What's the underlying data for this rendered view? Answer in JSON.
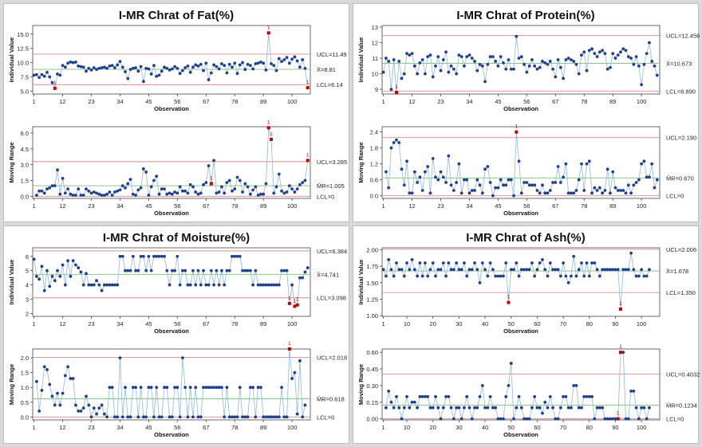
{
  "chart_data": [
    {
      "type": "line",
      "title": "I-MR Chrat of Fat(%)",
      "xlabel": "Observation",
      "x_ticks": [
        1,
        12,
        23,
        34,
        45,
        56,
        67,
        78,
        89,
        100
      ],
      "individual": {
        "ylabel": "Individual Value",
        "ylim": [
          4.5,
          16.5
        ],
        "y_ticks": [
          "5.0",
          "7.5",
          "10.0",
          "12.5",
          "15.0"
        ],
        "ucl": 11.49,
        "center": 8.81,
        "lcl": 6.14,
        "ucl_label": "UCL=11.49",
        "center_label": "X̄=8.81",
        "lcl_label": "LCL=6.14",
        "flag_label": "1",
        "values": [
          7.8,
          7.9,
          7.4,
          7.9,
          7.6,
          8.3,
          7.5,
          6.5,
          5.5,
          8.0,
          7.8,
          9.5,
          9.2,
          9.9,
          10.1,
          10.0,
          10.1,
          9.4,
          9.3,
          9.2,
          8.5,
          9.0,
          8.7,
          9.1,
          8.8,
          9.0,
          9.1,
          9.2,
          9.0,
          9.4,
          9.5,
          9.1,
          9.6,
          10.2,
          9.2,
          8.4,
          7.2,
          8.8,
          9.0,
          9.1,
          8.5,
          9.3,
          6.7,
          9.0,
          8.9,
          8.0,
          9.5,
          7.6,
          7.8,
          8.5,
          9.2,
          9.0,
          8.7,
          8.9,
          9.3,
          9.0,
          8.1,
          8.6,
          9.1,
          9.4,
          8.3,
          9.2,
          9.6,
          9.4,
          9.7,
          8.6,
          9.9,
          7.0,
          8.2,
          9.6,
          9.3,
          8.9,
          9.8,
          9.5,
          8.2,
          9.7,
          9.2,
          9.9,
          8.1,
          9.6,
          10.0,
          8.8,
          9.7,
          9.5,
          8.9,
          9.8,
          9.9,
          10.1,
          9.9,
          8.7,
          15.2,
          9.8,
          9.5,
          8.6,
          10.7,
          10.2,
          10.5,
          10.9,
          9.9,
          10.6,
          11.0,
          10.3,
          9.2,
          10.5,
          9.0,
          5.6
        ],
        "flagged": [
          9,
          91,
          106
        ]
      },
      "moving_range": {
        "ylabel": "Moving Range",
        "ylim": [
          -0.2,
          6.6
        ],
        "y_ticks": [
          "0.0",
          "1.5",
          "3.0",
          "4.5",
          "6.0"
        ],
        "ucl": 3.285,
        "center": 1.005,
        "lcl": 0,
        "ucl_label": "UCL=3.285",
        "center_label": "M̄R=1.005",
        "lcl_label": "LCL=0",
        "flag_label": "1",
        "values": [
          0.1,
          0.5,
          0.5,
          0.3,
          0.7,
          0.8,
          1.0,
          1.0,
          2.5,
          0.2,
          1.7,
          0.3,
          0.7,
          0.2,
          0.1,
          0.1,
          0.7,
          0.1,
          0.1,
          0.7,
          0.5,
          0.3,
          0.4,
          0.3,
          0.2,
          0.1,
          0.1,
          0.2,
          0.4,
          0.1,
          0.4,
          0.5,
          0.6,
          1.0,
          0.8,
          1.2,
          1.6,
          0.2,
          0.1,
          0.6,
          0.8,
          2.6,
          2.3,
          0.1,
          0.9,
          1.5,
          1.9,
          0.2,
          0.7,
          0.7,
          0.2,
          0.3,
          0.2,
          0.4,
          0.3,
          0.9,
          0.5,
          0.5,
          0.3,
          1.1,
          0.9,
          0.4,
          0.2,
          0.3,
          1.1,
          1.3,
          2.9,
          1.2,
          3.4,
          0.3,
          0.4,
          0.9,
          0.3,
          1.3,
          1.5,
          0.5,
          0.7,
          1.8,
          1.5,
          0.4,
          1.2,
          0.9,
          0.2,
          0.6,
          0.9,
          0.1,
          0.2,
          0.2,
          1.2,
          6.5,
          5.4,
          0.3,
          0.9,
          2.1,
          0.5,
          0.3,
          0.4,
          1.0,
          0.7,
          0.4,
          0.7,
          1.1,
          1.3,
          1.5,
          3.4
        ],
        "flagged": [
          69,
          91,
          92,
          106
        ]
      }
    },
    {
      "type": "line",
      "title": "I-MR Chrat of Protein(%)",
      "xlabel": "Observation",
      "x_ticks": [
        1,
        12,
        23,
        34,
        45,
        56,
        67,
        78,
        89,
        100
      ],
      "individual": {
        "ylabel": "Individual Value",
        "ylim": [
          8.7,
          13.1
        ],
        "y_ticks": [
          "9",
          "10",
          "11",
          "12",
          "13"
        ],
        "ucl": 12.456,
        "center": 10.673,
        "lcl": 8.89,
        "ucl_label": "UCL=12.456",
        "center_label": "X̄=10.673",
        "lcl_label": "LCL=8.890",
        "flag_label": "1",
        "values": [
          10.1,
          11.0,
          10.8,
          9.0,
          10.9,
          8.8,
          10.8,
          9.7,
          10.0,
          11.3,
          11.2,
          11.3,
          10.5,
          10.0,
          10.7,
          10.9,
          10.0,
          11.1,
          11.2,
          9.8,
          10.5,
          11.1,
          10.2,
          10.9,
          11.4,
          10.1,
          10.5,
          10.3,
          10.0,
          11.2,
          11.1,
          10.5,
          11.1,
          11.2,
          11.0,
          10.8,
          10.2,
          10.6,
          10.5,
          9.5,
          10.6,
          11.1,
          11.1,
          10.8,
          10.5,
          11.1,
          10.7,
          10.3,
          10.9,
          10.3,
          10.3,
          12.4,
          11.0,
          11.1,
          10.6,
          10.1,
          10.5,
          10.9,
          10.5,
          10.3,
          10.4,
          10.8,
          10.7,
          10.6,
          10.8,
          10.3,
          9.8,
          10.9,
          10.4,
          9.7,
          10.9,
          11.0,
          10.9,
          10.8,
          10.6,
          10.0,
          11.2,
          11.4,
          10.2,
          11.5,
          11.6,
          11.3,
          11.1,
          11.4,
          11.5,
          11.3,
          10.3,
          10.4,
          11.3,
          11.0,
          11.2,
          11.4,
          11.6,
          11.5,
          11.1,
          11.0,
          10.6,
          11.1,
          10.5,
          9.3,
          10.6,
          11.3,
          12.0,
          10.8,
          10.5,
          9.9
        ],
        "flagged": [
          6
        ]
      },
      "moving_range": {
        "ylabel": "Moving Range",
        "ylim": [
          -0.1,
          2.6
        ],
        "y_ticks": [
          "0.0",
          "0.6",
          "1.2",
          "1.8",
          "2.4"
        ],
        "ucl": 2.19,
        "center": 0.67,
        "lcl": 0,
        "ucl_label": "UCL=2.190",
        "center_label": "M̄R=0.670",
        "lcl_label": "LCL=0",
        "flag_label": "1",
        "values": [
          0.9,
          0.3,
          1.8,
          2.0,
          2.1,
          2.0,
          1.0,
          0.4,
          1.3,
          0.1,
          0.1,
          0.9,
          0.5,
          0.7,
          0.2,
          0.9,
          1.1,
          0.1,
          1.4,
          0.7,
          0.6,
          0.9,
          0.7,
          0.5,
          1.5,
          0.4,
          0.2,
          0.5,
          1.2,
          0.1,
          0.6,
          0.6,
          0.1,
          0.2,
          0.2,
          0.6,
          0.4,
          0.1,
          1.0,
          1.1,
          0.5,
          0.0,
          0.3,
          0.3,
          0.6,
          0.4,
          0.4,
          0.6,
          0.6,
          0.0,
          2.4,
          1.3,
          0.1,
          0.5,
          0.5,
          0.4,
          0.4,
          0.4,
          0.2,
          0.1,
          0.4,
          0.1,
          0.1,
          0.2,
          0.5,
          0.5,
          1.1,
          0.5,
          0.7,
          1.2,
          0.1,
          0.1,
          0.1,
          0.2,
          0.6,
          1.2,
          0.2,
          1.2,
          1.3,
          0.1,
          0.3,
          0.2,
          0.3,
          0.1,
          0.2,
          1.0,
          0.1,
          0.9,
          0.3,
          0.2,
          0.2,
          0.2,
          0.1,
          0.4,
          0.1,
          0.4,
          0.5,
          0.6,
          1.2,
          1.3,
          0.7,
          0.7,
          1.2,
          0.3,
          0.6
        ],
        "flagged": [
          52
        ]
      }
    },
    {
      "type": "line",
      "title": "I-MR Chrat of Moisture(%)",
      "xlabel": "Observation",
      "x_ticks": [
        1,
        12,
        23,
        34,
        45,
        56,
        67,
        78,
        89,
        100
      ],
      "individual": {
        "ylabel": "Individual Value",
        "ylim": [
          1.8,
          6.6
        ],
        "y_ticks": [
          "2",
          "3",
          "4",
          "5",
          "6"
        ],
        "ucl": 6.384,
        "center": 4.741,
        "lcl": 3.098,
        "ucl_label": "UCL=6.384",
        "center_label": "X̄=4.741",
        "lcl_label": "LCL=3.098",
        "flag_label": "1",
        "values": [
          5.8,
          4.6,
          4.4,
          5.3,
          3.6,
          5.0,
          3.9,
          4.6,
          4.3,
          5.0,
          4.6,
          5.4,
          4.0,
          5.7,
          4.6,
          5.7,
          5.4,
          5.2,
          4.9,
          4.0,
          4.8,
          4.0,
          4.0,
          4.0,
          4.3,
          4.0,
          3.6,
          4.0,
          4.0,
          4.0,
          4.0,
          4.0,
          4.0,
          6.0,
          6.0,
          5.0,
          5.0,
          5.0,
          6.0,
          5.0,
          5.0,
          6.0,
          6.0,
          5.0,
          6.0,
          5.0,
          6.0,
          6.0,
          6.0,
          6.0,
          6.0,
          5.0,
          4.0,
          5.0,
          5.0,
          6.0,
          4.0,
          5.0,
          5.0,
          4.0,
          4.0,
          5.0,
          4.0,
          5.0,
          4.0,
          5.0,
          4.0,
          4.0,
          5.0,
          4.0,
          5.0,
          4.0,
          5.0,
          4.0,
          5.0,
          5.0,
          6.0,
          6.0,
          6.0,
          6.0,
          5.0,
          5.0,
          5.0,
          5.0,
          4.0,
          5.0,
          4.0,
          4.0,
          4.0,
          4.0,
          4.0,
          4.0,
          4.0,
          4.0,
          4.0,
          5.0,
          5.0,
          5.0,
          2.7,
          4.0,
          2.5,
          2.6,
          4.5,
          4.5,
          4.9,
          5.2
        ],
        "flagged": [
          99,
          101,
          102
        ]
      },
      "moving_range": {
        "ylabel": "Moving Range",
        "ylim": [
          -0.1,
          2.3
        ],
        "y_ticks": [
          "0.0",
          "0.5",
          "1.0",
          "1.5",
          "2.0"
        ],
        "ucl": 2.018,
        "center": 0.618,
        "lcl": 0,
        "ucl_label": "UCL=2.018",
        "center_label": "M̄R=0.618",
        "lcl_label": "LCL=0",
        "flag_label": "1",
        "values": [
          1.2,
          0.2,
          0.9,
          1.7,
          1.6,
          1.1,
          0.7,
          0.4,
          0.8,
          0.4,
          0.8,
          1.4,
          1.7,
          1.3,
          1.3,
          0.4,
          0.2,
          0.2,
          0.3,
          0.7,
          0.4,
          0.0,
          0.3,
          0.1,
          0.3,
          0.4,
          0.1,
          0.0,
          1.0,
          1.0,
          0.0,
          0.0,
          2.0,
          0.0,
          1.0,
          0.0,
          0.0,
          1.0,
          1.0,
          0.0,
          1.0,
          0.0,
          0.0,
          1.0,
          1.0,
          0.0,
          1.0,
          0.0,
          0.0,
          1.0,
          1.0,
          0.0,
          0.0,
          1.0,
          1.0,
          0.0,
          2.0,
          1.0,
          0.0,
          1.0,
          0.0,
          1.0,
          0.0,
          0.0,
          1.0,
          1.0,
          1.0,
          1.0,
          1.0,
          1.0,
          1.0,
          1.0,
          0.0,
          1.0,
          0.0,
          0.0,
          0.0,
          0.0,
          1.0,
          0.0,
          0.0,
          0.0,
          1.0,
          1.0,
          0.0,
          1.0,
          1.0,
          0.0,
          0.0,
          0.0,
          0.0,
          0.0,
          0.0,
          0.0,
          1.0,
          0.0,
          0.0,
          2.3,
          1.3,
          1.5,
          0.1,
          1.9,
          0.0,
          0.4
        ],
        "flagged": [
          99
        ]
      }
    },
    {
      "type": "line",
      "title": "I-MR Chrat of Ash(%)",
      "xlabel": "Observation",
      "x_ticks": [
        1,
        10,
        20,
        30,
        40,
        50,
        60,
        70,
        80,
        90,
        100
      ],
      "individual": {
        "ylabel": "Individual Value",
        "ylim": [
          0.99,
          2.03
        ],
        "y_ticks": [
          "1.00",
          "1.25",
          "1.50",
          "1.75",
          "2.00"
        ],
        "ucl": 2.006,
        "center": 1.678,
        "lcl": 1.35,
        "ucl_label": "UCL=2.006",
        "center_label": "X̄=1.678",
        "lcl_label": "LCL=1.350",
        "flag_label": "1",
        "values": [
          1.7,
          1.6,
          1.85,
          1.7,
          1.6,
          1.8,
          1.7,
          1.7,
          1.6,
          1.8,
          1.7,
          1.85,
          1.7,
          1.6,
          1.8,
          1.6,
          1.8,
          1.6,
          1.7,
          1.8,
          1.6,
          1.7,
          1.7,
          1.8,
          1.6,
          1.8,
          1.7,
          1.7,
          1.8,
          1.7,
          1.7,
          1.8,
          1.6,
          1.7,
          1.7,
          1.8,
          1.7,
          1.5,
          1.8,
          1.7,
          1.6,
          1.8,
          1.7,
          1.6,
          1.6,
          1.6,
          1.6,
          1.8,
          1.2,
          1.7,
          1.7,
          1.8,
          1.6,
          1.7,
          1.7,
          1.7,
          1.7,
          1.8,
          1.6,
          1.7,
          1.8,
          1.85,
          1.7,
          1.6,
          1.8,
          1.7,
          1.7,
          1.7,
          1.6,
          1.8,
          1.6,
          1.5,
          1.6,
          1.9,
          1.6,
          1.7,
          1.8,
          1.6,
          1.8,
          1.6,
          1.8,
          1.8,
          1.7,
          1.6,
          1.7,
          1.7,
          1.7,
          1.7,
          1.7,
          1.7,
          1.7,
          1.1,
          1.7,
          1.7,
          1.7,
          1.95,
          1.7,
          1.6,
          1.6,
          1.7,
          1.6,
          1.6,
          1.7
        ],
        "flagged": [
          49,
          92
        ]
      },
      "moving_range": {
        "ylabel": "Moving Range",
        "ylim": [
          -0.01,
          0.63
        ],
        "y_ticks": [
          "0.00",
          "0.15",
          "0.30",
          "0.45",
          "0.60"
        ],
        "ucl": 0.4032,
        "center": 0.1234,
        "lcl": 0,
        "ucl_label": "UCL=0.4032",
        "center_label": "M̄R=0.1234",
        "lcl_label": "LCL=0",
        "flag_label": "1",
        "values": [
          0.1,
          0.25,
          0.15,
          0.1,
          0.2,
          0.1,
          0.0,
          0.1,
          0.2,
          0.1,
          0.15,
          0.15,
          0.1,
          0.2,
          0.2,
          0.2,
          0.2,
          0.1,
          0.1,
          0.2,
          0.1,
          0.0,
          0.1,
          0.2,
          0.2,
          0.1,
          0.0,
          0.1,
          0.1,
          0.0,
          0.1,
          0.2,
          0.1,
          0.0,
          0.1,
          0.1,
          0.2,
          0.3,
          0.1,
          0.1,
          0.2,
          0.1,
          0.1,
          0.0,
          0.0,
          0.0,
          0.2,
          0.3,
          0.5,
          0.0,
          0.1,
          0.2,
          0.1,
          0.0,
          0.0,
          0.0,
          0.1,
          0.2,
          0.1,
          0.1,
          0.05,
          0.15,
          0.1,
          0.2,
          0.1,
          0.0,
          0.0,
          0.1,
          0.2,
          0.2,
          0.1,
          0.1,
          0.3,
          0.3,
          0.1,
          0.1,
          0.2,
          0.2,
          0.2,
          0.2,
          0.0,
          0.1,
          0.1,
          0.1,
          0.0,
          0.0,
          0.0,
          0.0,
          0.0,
          0.0,
          0.6,
          0.6,
          0.0,
          0.0,
          0.25,
          0.25,
          0.1,
          0.0,
          0.1,
          0.1,
          0.0,
          0.1
        ],
        "flagged": [
          91,
          92
        ]
      }
    }
  ]
}
